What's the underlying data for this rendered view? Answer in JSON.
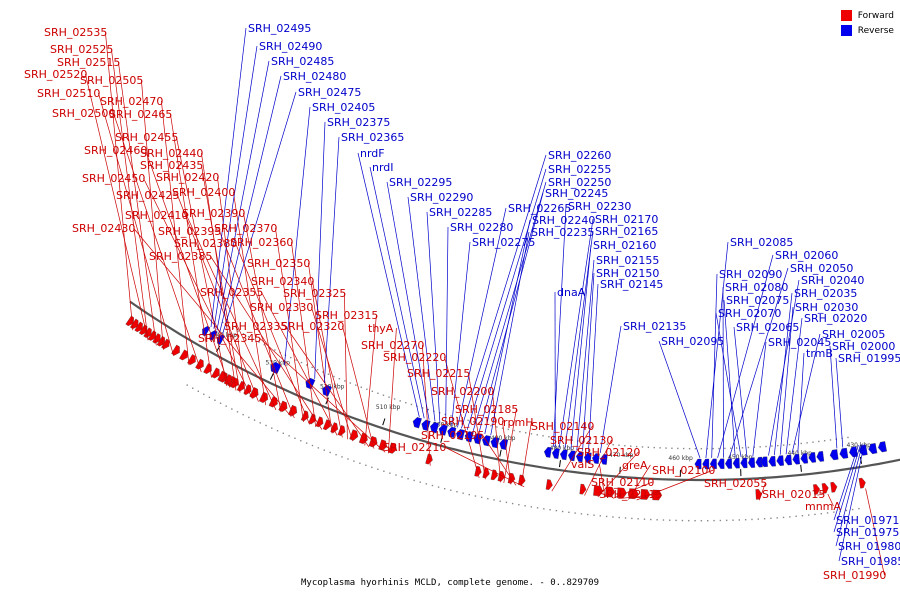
{
  "legend": [
    {
      "label": "Forward",
      "color": "#ee0000"
    },
    {
      "label": "Reverse",
      "color": "#0000ee"
    }
  ],
  "caption": "Mycoplasma hyorhinis MCLD, complete genome. - 0..829709",
  "colors": {
    "forward": "#ee0000",
    "reverse": "#0000ee",
    "forward_label": "#cc0000",
    "reverse_label": "#0000cc",
    "backbone": "#555555"
  },
  "scale_ticks": [
    "540 kbp",
    "530 kbp",
    "520 kbp",
    "510 kbp",
    "500 kbp",
    "490 kbp",
    "480 kbp",
    "470 kbp",
    "460 kbp",
    "450 kbp",
    "440 kbp",
    "430 kbp"
  ],
  "forward_genes": [
    "SRH_02535",
    "SRH_02525",
    "SRH_02515",
    "SRH_02520",
    "SRH_02505",
    "SRH_02510",
    "SRH_02470",
    "SRH_02500",
    "SRH_02465",
    "SRH_02455",
    "SRH_02460",
    "SRH_02440",
    "SRH_02435",
    "SRH_02420",
    "SRH_02450",
    "SRH_02425",
    "SRH_02400",
    "SRH_02410",
    "SRH_02390",
    "SRH_02430",
    "SRH_02395",
    "SRH_02370",
    "SRH_02380",
    "SRH_02360",
    "SRH_02385",
    "SRH_02350",
    "SRH_02355",
    "SRH_02340",
    "SRH_02325",
    "SRH_02330",
    "SRH_02315",
    "SRH_02335",
    "SRH_02320",
    "SRH_02345",
    "thyA",
    "SRH_02270",
    "SRH_02220",
    "SRH_02215",
    "SRH_02200",
    "SRH_02185",
    "SRH_02190",
    "rpmH",
    "SRH_02195",
    "SRH_02210",
    "SRH_02140",
    "SRH_02130",
    "SRH_02120",
    "valS",
    "greA",
    "SRH_02100",
    "SRH_02110",
    "SRH_02115",
    "SRH_02055",
    "SRH_02015",
    "mnmA",
    "SRH_01990"
  ],
  "reverse_genes": [
    "SRH_02495",
    "SRH_02490",
    "SRH_02485",
    "SRH_02480",
    "SRH_02475",
    "SRH_02405",
    "SRH_02375",
    "SRH_02365",
    "nrdF",
    "nrdI",
    "SRH_02295",
    "SRH_02290",
    "SRH_02285",
    "SRH_02280",
    "SRH_02275",
    "SRH_02265",
    "SRH_02260",
    "SRH_02255",
    "SRH_02250",
    "SRH_02245",
    "SRH_02240",
    "SRH_02235",
    "SRH_02230",
    "SRH_02170",
    "SRH_02165",
    "SRH_02160",
    "SRH_02155",
    "SRH_02150",
    "SRH_02145",
    "dnaA",
    "SRH_02135",
    "SRH_02095",
    "SRH_02085",
    "SRH_02090",
    "SRH_02060",
    "SRH_02080",
    "SRH_02050",
    "SRH_02075",
    "SRH_02040",
    "SRH_02070",
    "SRH_02035",
    "SRH_02030",
    "SRH_02065",
    "SRH_02020",
    "SRH_02045",
    "SRH_02005",
    "trmB",
    "SRH_02000",
    "SRH_01995",
    "SRH_01971",
    "SRH_01975",
    "SRH_01980",
    "SRH_01985"
  ]
}
